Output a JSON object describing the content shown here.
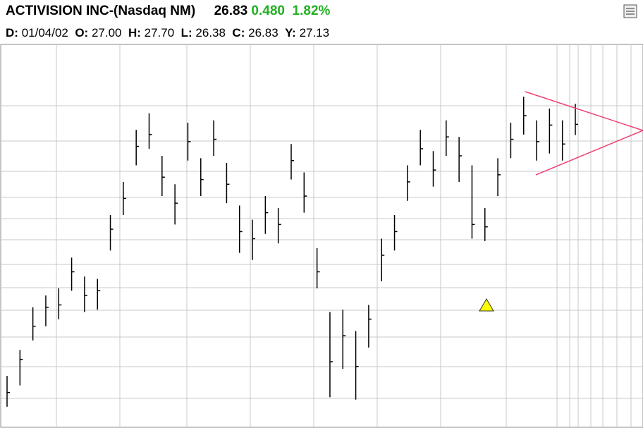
{
  "header": {
    "title": "ACTIVISION INC-(Nasdaq NM)",
    "last": "26.83",
    "change": "0.480",
    "change_pct": "1.82%",
    "fields": [
      {
        "label": "D:",
        "value": "01/04/02"
      },
      {
        "label": "O:",
        "value": "27.00"
      },
      {
        "label": "H:",
        "value": "27.70"
      },
      {
        "label": "L:",
        "value": "26.38"
      },
      {
        "label": "C:",
        "value": "26.83"
      },
      {
        "label": "Y:",
        "value": "27.13"
      }
    ]
  },
  "chart_data": {
    "type": "ohlc",
    "color": "#000000",
    "ylim": [
      14,
      30
    ],
    "highs": [
      16.2,
      17.3,
      19.1,
      19.6,
      19.9,
      21.2,
      20.4,
      20.3,
      23.0,
      24.4,
      26.6,
      27.3,
      25.5,
      24.3,
      26.9,
      25.4,
      27.0,
      25.2,
      23.4,
      22.8,
      23.8,
      23.3,
      26.0,
      24.8,
      21.6,
      18.9,
      19.0,
      18.1,
      19.2,
      22.0,
      23.0,
      25.1,
      26.6,
      25.7,
      27.0,
      26.3,
      25.1,
      23.3,
      25.4,
      26.9,
      28.0,
      27.0,
      27.5,
      27.0,
      27.7
    ],
    "lows": [
      14.9,
      15.8,
      17.7,
      18.3,
      18.6,
      19.8,
      18.9,
      19.0,
      21.5,
      23.0,
      25.1,
      25.8,
      23.8,
      22.6,
      25.3,
      23.8,
      25.5,
      23.5,
      21.4,
      21.1,
      22.2,
      21.8,
      24.5,
      23.1,
      19.9,
      15.3,
      16.5,
      15.2,
      17.4,
      20.2,
      21.5,
      23.6,
      25.1,
      24.2,
      25.5,
      24.4,
      22.0,
      21.9,
      23.8,
      25.4,
      26.4,
      25.3,
      25.6,
      25.3,
      26.38
    ],
    "closes": [
      15.5,
      16.9,
      18.3,
      19.1,
      19.2,
      20.6,
      19.6,
      19.8,
      22.4,
      23.7,
      25.9,
      26.4,
      24.6,
      23.5,
      26.1,
      24.5,
      26.2,
      24.3,
      22.3,
      22.0,
      23.1,
      22.6,
      25.3,
      23.8,
      20.6,
      16.8,
      17.9,
      16.6,
      18.6,
      21.3,
      22.3,
      24.4,
      25.8,
      24.9,
      26.3,
      25.5,
      22.6,
      22.5,
      24.7,
      26.2,
      27.2,
      26.1,
      26.8,
      26.0,
      26.83
    ]
  }
}
